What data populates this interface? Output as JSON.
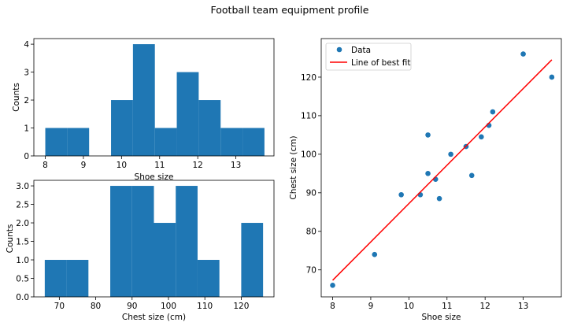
{
  "figure": {
    "title": "Football team equipment profile"
  },
  "chart_data": [
    {
      "type": "bar",
      "subtype": "histogram",
      "xlabel": "Shoe size",
      "ylabel": "Counts",
      "xlim": [
        7.7,
        14.0
      ],
      "ylim": [
        0,
        4.2
      ],
      "bins": [
        [
          8.0,
          8.575
        ],
        [
          8.575,
          9.15
        ],
        [
          9.15,
          9.725
        ],
        [
          9.725,
          10.3
        ],
        [
          10.3,
          10.875
        ],
        [
          10.875,
          11.45
        ],
        [
          11.45,
          12.025
        ],
        [
          12.025,
          12.6
        ],
        [
          12.6,
          13.175
        ],
        [
          13.175,
          13.75
        ]
      ],
      "values": [
        1,
        1,
        0,
        2,
        4,
        1,
        3,
        2,
        1,
        1
      ],
      "xticks": [
        8,
        9,
        10,
        11,
        12,
        13
      ],
      "yticks": [
        0,
        1,
        2,
        3,
        4
      ],
      "grid": false,
      "color": "#1f77b4"
    },
    {
      "type": "bar",
      "subtype": "histogram",
      "xlabel": "Chest size (cm)",
      "ylabel": "Counts",
      "xlim": [
        63,
        129
      ],
      "ylim": [
        0,
        3.15
      ],
      "bins": [
        [
          66,
          72
        ],
        [
          72,
          78
        ],
        [
          78,
          84
        ],
        [
          84,
          90
        ],
        [
          90,
          96
        ],
        [
          96,
          102
        ],
        [
          102,
          108
        ],
        [
          108,
          114
        ],
        [
          114,
          120
        ],
        [
          120,
          126
        ]
      ],
      "values": [
        1,
        1,
        0,
        3,
        3,
        2,
        3,
        1,
        0,
        2
      ],
      "xticks": [
        70,
        80,
        90,
        100,
        110,
        120
      ],
      "yticks": [
        "0.0",
        "0.5",
        "1.0",
        "1.5",
        "2.0",
        "2.5",
        "3.0"
      ],
      "grid": false,
      "color": "#1f77b4"
    },
    {
      "type": "scatter",
      "xlabel": "Shoe size",
      "ylabel": "Chest size (cm)",
      "xlim": [
        7.7,
        14.0
      ],
      "ylim": [
        63,
        130
      ],
      "xticks": [
        8,
        9,
        10,
        11,
        12,
        13
      ],
      "yticks": [
        70,
        80,
        90,
        100,
        110,
        120
      ],
      "legend_position": "upper-left",
      "series": [
        {
          "name": "Data",
          "color": "#1f77b4",
          "points": [
            [
              8.0,
              66
            ],
            [
              9.1,
              74
            ],
            [
              9.8,
              89.5
            ],
            [
              10.3,
              89.5
            ],
            [
              10.5,
              95
            ],
            [
              10.5,
              105
            ],
            [
              10.7,
              93.5
            ],
            [
              10.8,
              88.5
            ],
            [
              11.1,
              100
            ],
            [
              11.5,
              102
            ],
            [
              11.65,
              94.5
            ],
            [
              11.9,
              104.5
            ],
            [
              12.1,
              107.5
            ],
            [
              12.2,
              111
            ],
            [
              13.0,
              126
            ],
            [
              13.75,
              120
            ]
          ]
        },
        {
          "name": "Line of best fit",
          "color": "#ff0000",
          "line": [
            [
              8.0,
              67.3
            ],
            [
              13.75,
              124.5
            ]
          ]
        }
      ]
    }
  ]
}
